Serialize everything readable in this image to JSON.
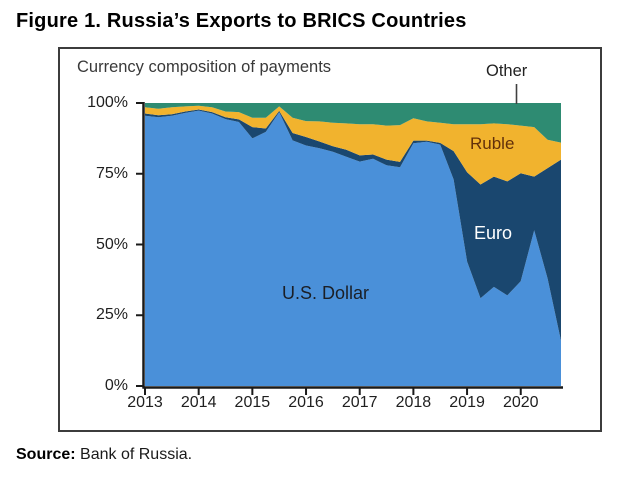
{
  "figure": {
    "title": "Figure 1. Russia’s Exports to BRICS Countries",
    "source_label": "Source:",
    "source_text": "Bank of Russia."
  },
  "chart_data": {
    "type": "area",
    "stacked": true,
    "title": "Currency composition of payments",
    "unit": "%",
    "ylim": [
      0,
      100
    ],
    "grid": false,
    "legend_position": "inline-labels",
    "y_ticks": [
      "100%",
      "75%",
      "50%",
      "25%",
      "0%"
    ],
    "y_tick_values": [
      100,
      75,
      50,
      25,
      0
    ],
    "x_ticks": [
      "2013",
      "2014",
      "2015",
      "2016",
      "2017",
      "2018",
      "2019",
      "2020"
    ],
    "x": [
      "2013Q1",
      "2013Q2",
      "2013Q3",
      "2013Q4",
      "2014Q1",
      "2014Q2",
      "2014Q3",
      "2014Q4",
      "2015Q1",
      "2015Q2",
      "2015Q3",
      "2015Q4",
      "2016Q1",
      "2016Q2",
      "2016Q3",
      "2016Q4",
      "2017Q1",
      "2017Q2",
      "2017Q3",
      "2017Q4",
      "2018Q1",
      "2018Q2",
      "2018Q3",
      "2018Q4",
      "2019Q1",
      "2019Q2",
      "2019Q3",
      "2019Q4",
      "2020Q1",
      "2020Q2",
      "2020Q3",
      "2020Q4"
    ],
    "series": [
      {
        "name": "U.S. Dollar",
        "color": "#4a90d9",
        "values": [
          95.5,
          95.0,
          95.5,
          96.5,
          97.3,
          96.3,
          94.3,
          93.3,
          87.5,
          89.8,
          96.8,
          86.8,
          85.0,
          84.0,
          82.8,
          81.0,
          79.3,
          80.3,
          78.0,
          77.3,
          85.8,
          86.3,
          85.3,
          73.0,
          44.0,
          31.0,
          35.0,
          32.0,
          37.0,
          55.0,
          38.0,
          16.0
        ]
      },
      {
        "name": "Euro",
        "color": "#1a476f",
        "values": [
          0.8,
          0.7,
          0.5,
          0.5,
          0.4,
          0.5,
          0.7,
          0.9,
          4.0,
          1.2,
          0.4,
          2.6,
          3.0,
          2.4,
          1.9,
          2.5,
          2.2,
          1.5,
          2.0,
          1.9,
          0.9,
          0.4,
          0.6,
          10.0,
          31.5,
          40.2,
          39.0,
          40.3,
          38.2,
          19.0,
          39.0,
          64.0
        ]
      },
      {
        "name": "Ruble",
        "color": "#f1b32e",
        "values": [
          2.2,
          2.3,
          2.5,
          1.8,
          1.3,
          1.7,
          2.0,
          2.6,
          3.3,
          3.8,
          1.6,
          5.4,
          5.6,
          7.1,
          8.3,
          9.3,
          11.0,
          10.7,
          12.0,
          13.0,
          7.9,
          6.8,
          7.1,
          9.5,
          17.0,
          21.3,
          18.8,
          20.2,
          16.8,
          17.5,
          10.0,
          6.0
        ]
      },
      {
        "name": "Other",
        "color": "#2e8b72",
        "values": [
          1.5,
          2.0,
          1.5,
          1.2,
          1.0,
          1.5,
          3.0,
          3.2,
          5.2,
          5.2,
          1.2,
          5.2,
          6.4,
          6.5,
          7.0,
          7.2,
          7.5,
          7.5,
          8.0,
          7.8,
          5.4,
          6.5,
          7.0,
          7.5,
          7.5,
          7.5,
          7.2,
          7.5,
          8.0,
          8.5,
          13.0,
          14.0
        ]
      }
    ],
    "axis_color": "#1a1a1a",
    "annotation_pointer_color": "#404040"
  }
}
